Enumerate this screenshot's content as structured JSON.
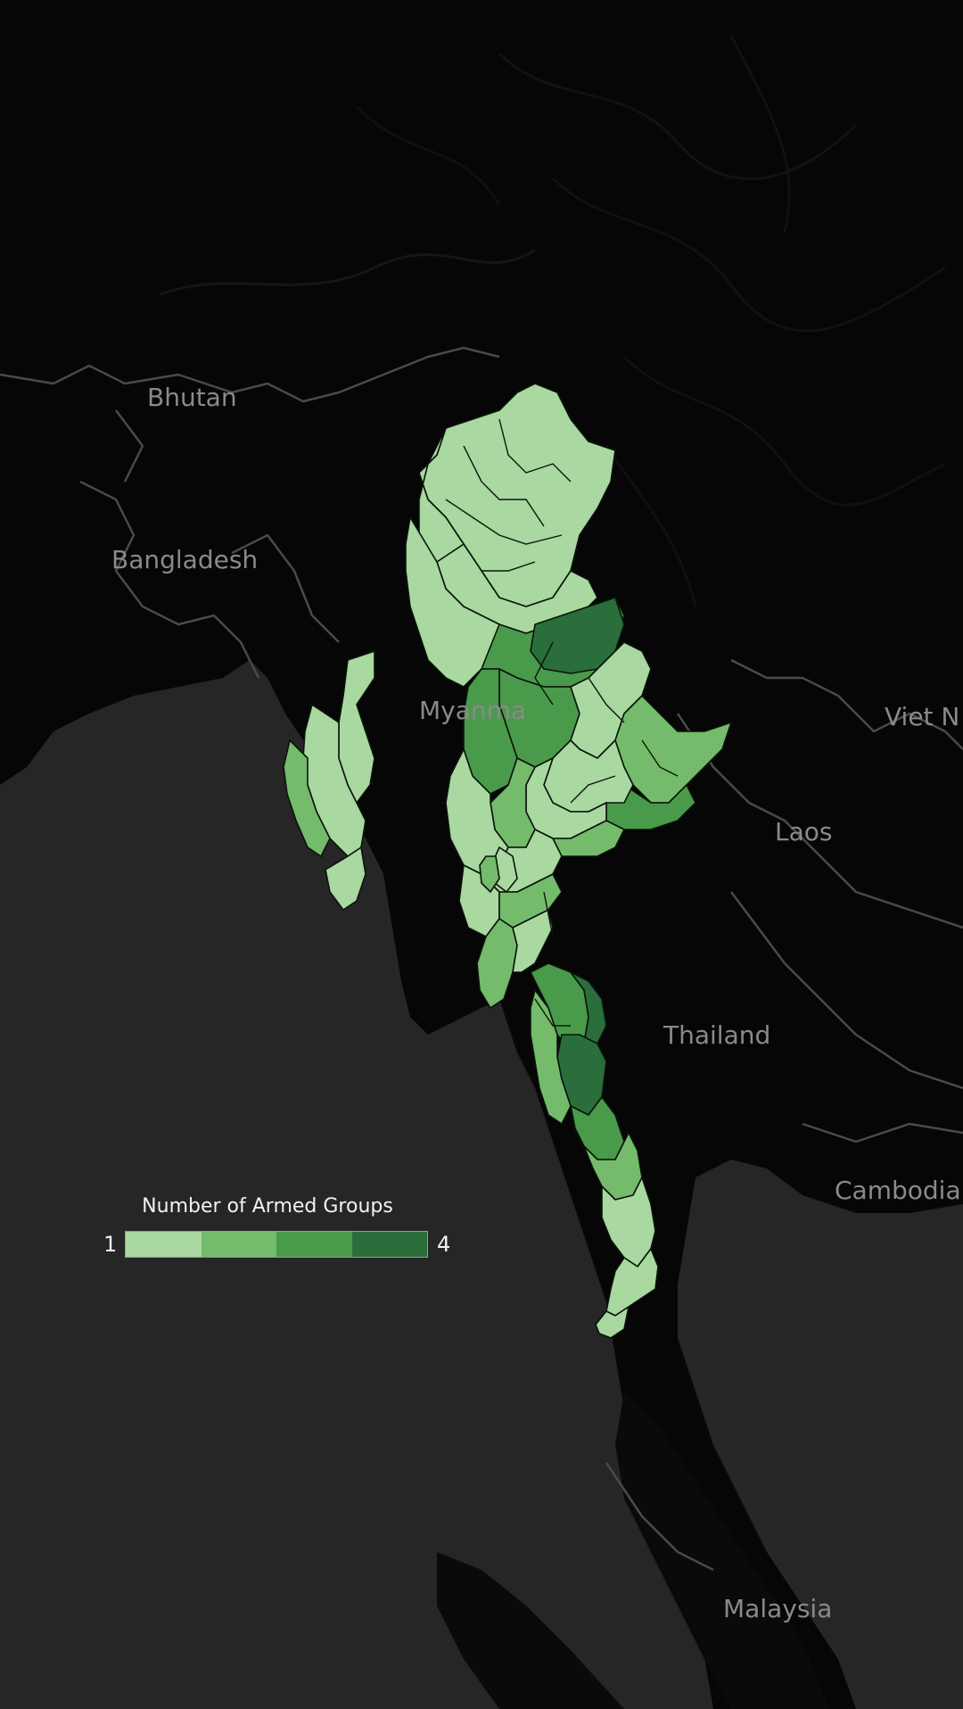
{
  "labels": {
    "bhutan": "Bhutan",
    "bangladesh": "Bangladesh",
    "myanmar": "Myanma",
    "viet": "Viet N",
    "laos": "Laos",
    "thailand": "Thailand",
    "cambodia": "Cambodia",
    "malaysia": "Malaysia"
  },
  "legend": {
    "title": "Number of Armed Groups",
    "min": "1",
    "max": "4",
    "colors": [
      "#a9d8a0",
      "#74bb6c",
      "#4a9a4c",
      "#2a6e3b"
    ]
  },
  "colors": {
    "background": "#050505",
    "sea": "#262626",
    "land": "#0a0a0a",
    "border": "#4a4a4a"
  }
}
